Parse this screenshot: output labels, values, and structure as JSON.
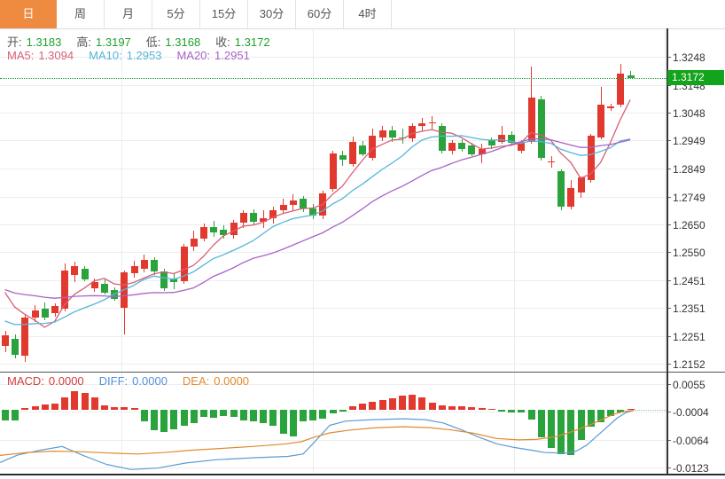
{
  "tabs": {
    "items": [
      {
        "label": "日",
        "name": "tab-daily",
        "active": true
      },
      {
        "label": "周",
        "name": "tab-weekly",
        "active": false
      },
      {
        "label": "月",
        "name": "tab-monthly",
        "active": false
      },
      {
        "label": "5分",
        "name": "tab-5min",
        "active": false
      },
      {
        "label": "15分",
        "name": "tab-15min",
        "active": false
      },
      {
        "label": "30分",
        "name": "tab-30min",
        "active": false
      },
      {
        "label": "60分",
        "name": "tab-60min",
        "active": false
      },
      {
        "label": "4时",
        "name": "tab-4hour",
        "active": false
      }
    ]
  },
  "ohlc_row": {
    "items": [
      {
        "label": "开:",
        "value": "1.3183"
      },
      {
        "label": "高:",
        "value": "1.3197"
      },
      {
        "label": "低:",
        "value": "1.3168"
      },
      {
        "label": "收:",
        "value": "1.3172"
      }
    ]
  },
  "ma_row": {
    "items": [
      {
        "label": "MA5:",
        "value": "1.3094",
        "color": "#d95f76"
      },
      {
        "label": "MA10:",
        "value": "1.2953",
        "color": "#55b5d9"
      },
      {
        "label": "MA20:",
        "value": "1.2951",
        "color": "#a763c6"
      }
    ]
  },
  "macd_row": {
    "items": [
      {
        "label": "MACD:",
        "value": "0.0000",
        "color": "#d43c3c"
      },
      {
        "label": "DIFF:",
        "value": "0.0000",
        "color": "#5590dd"
      },
      {
        "label": "DEA:",
        "value": "0.0000",
        "color": "#e28a30"
      }
    ]
  },
  "price_axis": {
    "labels": [
      {
        "text": "1.3248",
        "value": 1.3248
      },
      {
        "text": "1.3148",
        "value": 1.3148
      },
      {
        "text": "1.3048",
        "value": 1.3048
      },
      {
        "text": "1.2949",
        "value": 1.2949
      },
      {
        "text": "1.2849",
        "value": 1.2849
      },
      {
        "text": "1.2749",
        "value": 1.2749
      },
      {
        "text": "1.2650",
        "value": 1.265
      },
      {
        "text": "1.2550",
        "value": 1.255
      },
      {
        "text": "1.2451",
        "value": 1.2451
      },
      {
        "text": "1.2351",
        "value": 1.2351
      },
      {
        "text": "1.2251",
        "value": 1.2251
      },
      {
        "text": "1.2152",
        "value": 1.2152
      }
    ],
    "current": {
      "value": "1.3172",
      "price": 1.3172
    }
  },
  "macd_axis": {
    "labels": [
      {
        "text": "0.0055",
        "value": 0.0055
      },
      {
        "text": "-0.0004",
        "value": -0.0004
      },
      {
        "text": "-0.0064",
        "value": -0.0064
      },
      {
        "text": "-0.0123",
        "value": -0.0123
      }
    ]
  },
  "colors": {
    "up": "#e2392f",
    "down": "#2ba33c",
    "badge_bg": "#14a31c",
    "current_line": "#1e9c3c",
    "ma5": "#d95f76",
    "ma10": "#55b5d9",
    "ma20": "#a763c6",
    "diff_line": "#5b9bd5",
    "dea_line": "#e08a2e",
    "macd_zero_dotted": "#8fcf9f",
    "ohlc_label": "#555555",
    "ohlc_value": "#1fa12a",
    "tab_active_bg": "#ef8b40"
  },
  "chart_data": {
    "type": "candlestick",
    "description": "Daily FX candlestick chart with MA5/MA10/MA20 overlays and MACD sub-panel",
    "main": {
      "price_range": [
        1.2152,
        1.3248
      ],
      "current_price": 1.3172,
      "ohlc_order": [
        "open",
        "high",
        "low",
        "close"
      ],
      "ma_periods": [
        5,
        10,
        20
      ],
      "ma_padding": {
        "ma5": 1.2445,
        "ma10": 1.231,
        "ma20": 1.2425
      },
      "candles": [
        [
          1.2215,
          1.2269,
          1.2193,
          1.2253
        ],
        [
          1.224,
          1.2258,
          1.217,
          1.2183
        ],
        [
          1.218,
          1.233,
          1.2158,
          1.2316
        ],
        [
          1.2316,
          1.236,
          1.23,
          1.2341
        ],
        [
          1.2348,
          1.2372,
          1.2308,
          1.2316
        ],
        [
          1.2332,
          1.2368,
          1.232,
          1.2357
        ],
        [
          1.2348,
          1.2509,
          1.2338,
          1.2484
        ],
        [
          1.247,
          1.2516,
          1.2442,
          1.25
        ],
        [
          1.249,
          1.2502,
          1.2446,
          1.2452
        ],
        [
          1.242,
          1.2456,
          1.2408,
          1.2445
        ],
        [
          1.2437,
          1.2452,
          1.2398,
          1.2405
        ],
        [
          1.2415,
          1.2426,
          1.2376,
          1.2383
        ],
        [
          1.2351,
          1.2484,
          1.2256,
          1.2478
        ],
        [
          1.2474,
          1.2521,
          1.2458,
          1.25
        ],
        [
          1.249,
          1.2541,
          1.2478,
          1.2522
        ],
        [
          1.2522,
          1.2532,
          1.2468,
          1.248
        ],
        [
          1.248,
          1.2492,
          1.2413,
          1.242
        ],
        [
          1.2455,
          1.2476,
          1.2419,
          1.2445
        ],
        [
          1.2447,
          1.2581,
          1.2438,
          1.257
        ],
        [
          1.257,
          1.2626,
          1.2553,
          1.26
        ],
        [
          1.26,
          1.2651,
          1.2588,
          1.264
        ],
        [
          1.264,
          1.2661,
          1.2604,
          1.262
        ],
        [
          1.263,
          1.2646,
          1.2598,
          1.261
        ],
        [
          1.261,
          1.2666,
          1.26,
          1.2655
        ],
        [
          1.2655,
          1.2701,
          1.2638,
          1.269
        ],
        [
          1.269,
          1.2702,
          1.2648,
          1.266
        ],
        [
          1.266,
          1.2701,
          1.2638,
          1.267
        ],
        [
          1.267,
          1.2712,
          1.2653,
          1.27
        ],
        [
          1.27,
          1.2741,
          1.2688,
          1.272
        ],
        [
          1.272,
          1.2756,
          1.2698,
          1.2735
        ],
        [
          1.274,
          1.2752,
          1.2693,
          1.2705
        ],
        [
          1.2705,
          1.2722,
          1.2668,
          1.268
        ],
        [
          1.268,
          1.2771,
          1.2668,
          1.276
        ],
        [
          1.2776,
          1.2912,
          1.2768,
          1.2903
        ],
        [
          1.2895,
          1.2912,
          1.2858,
          1.288
        ],
        [
          1.2865,
          1.2962,
          1.2856,
          1.2944
        ],
        [
          1.293,
          1.2946,
          1.2893,
          1.29
        ],
        [
          1.2887,
          1.2991,
          1.2878,
          1.2966
        ],
        [
          1.296,
          1.3002,
          1.2948,
          1.2985
        ],
        [
          1.2985,
          1.3001,
          1.2944,
          1.296
        ],
        [
          1.296,
          1.2991,
          1.2938,
          1.2955
        ],
        [
          1.2955,
          1.3011,
          1.2943,
          1.3
        ],
        [
          1.3,
          1.3031,
          1.2983,
          1.301
        ],
        [
          1.301,
          1.3036,
          1.2988,
          1.3015
        ],
        [
          1.3001,
          1.3012,
          1.2903,
          1.2912
        ],
        [
          1.2912,
          1.2951,
          1.2898,
          1.294
        ],
        [
          1.294,
          1.2952,
          1.2908,
          1.292
        ],
        [
          1.293,
          1.2941,
          1.2893,
          1.29
        ],
        [
          1.29,
          1.2936,
          1.2868,
          1.292
        ],
        [
          1.295,
          1.2961,
          1.2918,
          1.293
        ],
        [
          1.2945,
          1.3001,
          1.2938,
          1.297
        ],
        [
          1.297,
          1.2981,
          1.2933,
          1.294
        ],
        [
          1.2912,
          1.2951,
          1.2903,
          1.2944
        ],
        [
          1.2944,
          1.3213,
          1.2938,
          1.3102
        ],
        [
          1.3096,
          1.311,
          1.2878,
          1.2887
        ],
        [
          1.2871,
          1.2892,
          1.2853,
          1.2875
        ],
        [
          1.2839,
          1.2846,
          1.27,
          1.2712
        ],
        [
          1.2712,
          1.2807,
          1.2704,
          1.2779
        ],
        [
          1.2763,
          1.2821,
          1.2744,
          1.2817
        ],
        [
          1.2807,
          1.2971,
          1.2799,
          1.2966
        ],
        [
          1.296,
          1.314,
          1.2953,
          1.3077
        ],
        [
          1.3066,
          1.308,
          1.3056,
          1.307
        ],
        [
          1.3077,
          1.3223,
          1.3068,
          1.3188
        ],
        [
          1.3183,
          1.3197,
          1.3168,
          1.3172
        ]
      ]
    },
    "macd": {
      "value_range": [
        -0.0123,
        0.0055
      ],
      "current": {
        "macd": 0.0,
        "diff": 0.0,
        "dea": 0.0
      },
      "histogram": [
        -0.0022,
        -0.0022,
        0.0004,
        0.0008,
        0.0012,
        0.0014,
        0.0026,
        0.004,
        0.0036,
        0.0026,
        0.001,
        0.0006,
        0.0005,
        0.0003,
        -0.0024,
        -0.0043,
        -0.0047,
        -0.0041,
        -0.0034,
        -0.0028,
        -0.0015,
        -0.0017,
        -0.0013,
        -0.0015,
        -0.0022,
        -0.0024,
        -0.0028,
        -0.0034,
        -0.0051,
        -0.0057,
        -0.0025,
        -0.0022,
        -0.0019,
        -0.0008,
        -0.0003,
        0.0008,
        0.0013,
        0.0017,
        0.002,
        0.0024,
        0.003,
        0.0032,
        0.0026,
        0.0015,
        0.001,
        0.0008,
        0.0007,
        0.0005,
        0.0004,
        0.0002,
        -0.0004,
        -0.0005,
        -0.0006,
        -0.002,
        -0.0058,
        -0.0082,
        -0.0095,
        -0.0097,
        -0.0064,
        -0.0036,
        -0.0026,
        -0.0013,
        -0.0005,
        0.0
      ],
      "diff_points": [
        [
          0,
          -0.0112
        ],
        [
          20,
          -0.0096
        ],
        [
          45,
          -0.0086
        ],
        [
          70,
          -0.0078
        ],
        [
          95,
          -0.0098
        ],
        [
          120,
          -0.0116
        ],
        [
          148,
          -0.0127
        ],
        [
          178,
          -0.0124
        ],
        [
          210,
          -0.0113
        ],
        [
          245,
          -0.0106
        ],
        [
          285,
          -0.0102
        ],
        [
          325,
          -0.0099
        ],
        [
          342,
          -0.0094
        ],
        [
          358,
          -0.0062
        ],
        [
          372,
          -0.0033
        ],
        [
          390,
          -0.0024
        ],
        [
          420,
          -0.0021
        ],
        [
          455,
          -0.0019
        ],
        [
          480,
          -0.0021
        ],
        [
          500,
          -0.0028
        ],
        [
          520,
          -0.0042
        ],
        [
          540,
          -0.0058
        ],
        [
          560,
          -0.0072
        ],
        [
          580,
          -0.008
        ],
        [
          600,
          -0.0086
        ],
        [
          615,
          -0.0091
        ],
        [
          638,
          -0.0092
        ],
        [
          650,
          -0.0088
        ],
        [
          662,
          -0.0075
        ],
        [
          674,
          -0.0055
        ],
        [
          686,
          -0.0035
        ],
        [
          696,
          -0.0018
        ],
        [
          706,
          -0.0006
        ],
        [
          715,
          -0.0001
        ]
      ],
      "dea_points": [
        [
          0,
          -0.0097
        ],
        [
          30,
          -0.0091
        ],
        [
          60,
          -0.0088
        ],
        [
          90,
          -0.0089
        ],
        [
          125,
          -0.0092
        ],
        [
          155,
          -0.0094
        ],
        [
          185,
          -0.0091
        ],
        [
          215,
          -0.0086
        ],
        [
          250,
          -0.0082
        ],
        [
          285,
          -0.0078
        ],
        [
          320,
          -0.0073
        ],
        [
          340,
          -0.0068
        ],
        [
          355,
          -0.0058
        ],
        [
          372,
          -0.0049
        ],
        [
          395,
          -0.0043
        ],
        [
          425,
          -0.0038
        ],
        [
          455,
          -0.0036
        ],
        [
          485,
          -0.0038
        ],
        [
          510,
          -0.0043
        ],
        [
          535,
          -0.005
        ],
        [
          560,
          -0.0061
        ],
        [
          585,
          -0.0064
        ],
        [
          605,
          -0.0063
        ],
        [
          625,
          -0.0058
        ],
        [
          640,
          -0.005
        ],
        [
          655,
          -0.004
        ],
        [
          668,
          -0.003
        ],
        [
          680,
          -0.002
        ],
        [
          692,
          -0.001
        ],
        [
          703,
          -0.0004
        ],
        [
          715,
          -0.0001
        ]
      ]
    }
  }
}
